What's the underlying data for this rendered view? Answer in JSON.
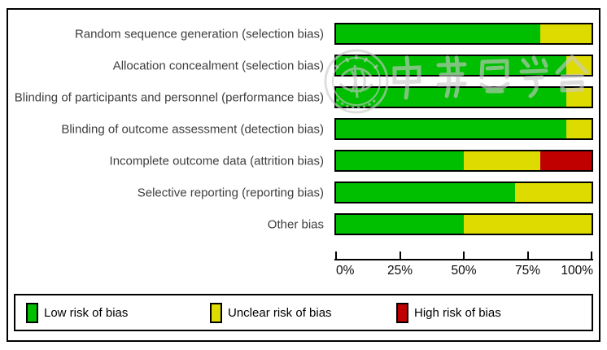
{
  "chart_data": {
    "type": "bar",
    "subtype": "horizontal-stacked-100pct",
    "title": "",
    "unit": "percent",
    "categories": [
      "Random sequence generation (selection bias)",
      "Allocation concealment (selection bias)",
      "Blinding of participants and personnel (performance bias)",
      "Blinding of outcome assessment (detection bias)",
      "Incomplete outcome data (attrition bias)",
      "Selective reporting (reporting bias)",
      "Other bias"
    ],
    "series": [
      {
        "name": "Low risk of bias",
        "color": "#00be00",
        "values": [
          80,
          90,
          90,
          90,
          50,
          70,
          50
        ]
      },
      {
        "name": "Unclear risk of bias",
        "color": "#dedb00",
        "values": [
          20,
          10,
          10,
          10,
          30,
          30,
          50
        ]
      },
      {
        "name": "High risk of bias",
        "color": "#c00000",
        "values": [
          0,
          0,
          0,
          0,
          20,
          0,
          0
        ]
      }
    ],
    "x_axis": {
      "range": [
        0,
        100
      ],
      "ticks": [
        "0%",
        "25%",
        "50%",
        "75%",
        "100%"
      ]
    },
    "legend_position": "bottom",
    "grid": false,
    "bar_border_color": "#000000"
  },
  "watermark": {
    "description": "Faint Chinese Medical Association circular seal with calligraphy characters",
    "text": "中華醫學會"
  }
}
